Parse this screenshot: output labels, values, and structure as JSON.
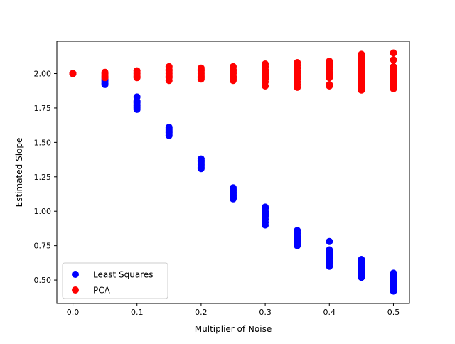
{
  "chart_data": {
    "type": "scatter",
    "title": "",
    "xlabel": "Multiplier of Noise",
    "ylabel": "Estimated Slope",
    "xlim": [
      -0.025,
      0.525
    ],
    "ylim": [
      0.33,
      2.235
    ],
    "xticks": [
      0.0,
      0.1,
      0.2,
      0.3,
      0.4,
      0.5
    ],
    "xtick_labels": [
      "0.0",
      "0.1",
      "0.2",
      "0.3",
      "0.4",
      "0.5"
    ],
    "yticks": [
      0.5,
      0.75,
      1.0,
      1.25,
      1.5,
      1.75,
      2.0
    ],
    "ytick_labels": [
      "0.50",
      "0.75",
      "1.00",
      "1.25",
      "1.50",
      "1.75",
      "2.00"
    ],
    "grid": false,
    "legend_position": "lower left",
    "series": [
      {
        "name": "Least Squares",
        "color": "#0000ff",
        "points": [
          [
            0.0,
            2.0
          ],
          [
            0.0,
            2.0
          ],
          [
            0.0,
            2.0
          ],
          [
            0.05,
            1.92
          ],
          [
            0.05,
            1.93
          ],
          [
            0.05,
            1.94
          ],
          [
            0.05,
            1.95
          ],
          [
            0.05,
            1.96
          ],
          [
            0.1,
            1.74
          ],
          [
            0.1,
            1.75
          ],
          [
            0.1,
            1.76
          ],
          [
            0.1,
            1.77
          ],
          [
            0.1,
            1.78
          ],
          [
            0.1,
            1.79
          ],
          [
            0.1,
            1.8
          ],
          [
            0.1,
            1.83
          ],
          [
            0.15,
            1.55
          ],
          [
            0.15,
            1.56
          ],
          [
            0.15,
            1.57
          ],
          [
            0.15,
            1.58
          ],
          [
            0.15,
            1.59
          ],
          [
            0.15,
            1.6
          ],
          [
            0.15,
            1.61
          ],
          [
            0.2,
            1.31
          ],
          [
            0.2,
            1.32
          ],
          [
            0.2,
            1.33
          ],
          [
            0.2,
            1.34
          ],
          [
            0.2,
            1.35
          ],
          [
            0.2,
            1.36
          ],
          [
            0.2,
            1.37
          ],
          [
            0.2,
            1.38
          ],
          [
            0.25,
            1.09
          ],
          [
            0.25,
            1.1
          ],
          [
            0.25,
            1.11
          ],
          [
            0.25,
            1.12
          ],
          [
            0.25,
            1.13
          ],
          [
            0.25,
            1.14
          ],
          [
            0.25,
            1.15
          ],
          [
            0.25,
            1.16
          ],
          [
            0.25,
            1.17
          ],
          [
            0.3,
            0.9
          ],
          [
            0.3,
            0.92
          ],
          [
            0.3,
            0.94
          ],
          [
            0.3,
            0.96
          ],
          [
            0.3,
            0.97
          ],
          [
            0.3,
            0.98
          ],
          [
            0.3,
            0.99
          ],
          [
            0.3,
            1.0
          ],
          [
            0.3,
            1.02
          ],
          [
            0.3,
            1.03
          ],
          [
            0.35,
            0.75
          ],
          [
            0.35,
            0.76
          ],
          [
            0.35,
            0.77
          ],
          [
            0.35,
            0.78
          ],
          [
            0.35,
            0.79
          ],
          [
            0.35,
            0.8
          ],
          [
            0.35,
            0.81
          ],
          [
            0.35,
            0.82
          ],
          [
            0.35,
            0.84
          ],
          [
            0.35,
            0.86
          ],
          [
            0.4,
            0.6
          ],
          [
            0.4,
            0.62
          ],
          [
            0.4,
            0.64
          ],
          [
            0.4,
            0.66
          ],
          [
            0.4,
            0.68
          ],
          [
            0.4,
            0.7
          ],
          [
            0.4,
            0.71
          ],
          [
            0.4,
            0.72
          ],
          [
            0.4,
            0.78
          ],
          [
            0.45,
            0.52
          ],
          [
            0.45,
            0.54
          ],
          [
            0.45,
            0.56
          ],
          [
            0.45,
            0.58
          ],
          [
            0.45,
            0.6
          ],
          [
            0.45,
            0.62
          ],
          [
            0.45,
            0.63
          ],
          [
            0.45,
            0.65
          ],
          [
            0.5,
            0.42
          ],
          [
            0.5,
            0.44
          ],
          [
            0.5,
            0.46
          ],
          [
            0.5,
            0.48
          ],
          [
            0.5,
            0.5
          ],
          [
            0.5,
            0.52
          ],
          [
            0.5,
            0.54
          ],
          [
            0.5,
            0.55
          ]
        ]
      },
      {
        "name": "PCA",
        "color": "#ff0000",
        "points": [
          [
            0.0,
            2.0
          ],
          [
            0.0,
            2.0
          ],
          [
            0.0,
            2.0
          ],
          [
            0.05,
            1.97
          ],
          [
            0.05,
            1.98
          ],
          [
            0.05,
            1.99
          ],
          [
            0.05,
            2.0
          ],
          [
            0.05,
            2.01
          ],
          [
            0.1,
            1.97
          ],
          [
            0.1,
            1.98
          ],
          [
            0.1,
            1.99
          ],
          [
            0.1,
            2.0
          ],
          [
            0.1,
            2.01
          ],
          [
            0.1,
            2.02
          ],
          [
            0.15,
            1.95
          ],
          [
            0.15,
            1.97
          ],
          [
            0.15,
            1.98
          ],
          [
            0.15,
            1.99
          ],
          [
            0.15,
            2.0
          ],
          [
            0.15,
            2.01
          ],
          [
            0.15,
            2.02
          ],
          [
            0.15,
            2.03
          ],
          [
            0.15,
            2.05
          ],
          [
            0.2,
            1.96
          ],
          [
            0.2,
            1.97
          ],
          [
            0.2,
            1.98
          ],
          [
            0.2,
            1.99
          ],
          [
            0.2,
            2.0
          ],
          [
            0.2,
            2.01
          ],
          [
            0.2,
            2.02
          ],
          [
            0.2,
            2.03
          ],
          [
            0.2,
            2.04
          ],
          [
            0.25,
            1.95
          ],
          [
            0.25,
            1.96
          ],
          [
            0.25,
            1.97
          ],
          [
            0.25,
            1.98
          ],
          [
            0.25,
            2.0
          ],
          [
            0.25,
            2.01
          ],
          [
            0.25,
            2.02
          ],
          [
            0.25,
            2.03
          ],
          [
            0.25,
            2.05
          ],
          [
            0.3,
            1.91
          ],
          [
            0.3,
            1.94
          ],
          [
            0.3,
            1.96
          ],
          [
            0.3,
            1.97
          ],
          [
            0.3,
            1.98
          ],
          [
            0.3,
            1.99
          ],
          [
            0.3,
            2.0
          ],
          [
            0.3,
            2.01
          ],
          [
            0.3,
            2.02
          ],
          [
            0.3,
            2.03
          ],
          [
            0.3,
            2.05
          ],
          [
            0.3,
            2.07
          ],
          [
            0.35,
            1.9
          ],
          [
            0.35,
            1.92
          ],
          [
            0.35,
            1.94
          ],
          [
            0.35,
            1.96
          ],
          [
            0.35,
            1.97
          ],
          [
            0.35,
            1.98
          ],
          [
            0.35,
            2.0
          ],
          [
            0.35,
            2.01
          ],
          [
            0.35,
            2.02
          ],
          [
            0.35,
            2.04
          ],
          [
            0.35,
            2.06
          ],
          [
            0.35,
            2.08
          ],
          [
            0.4,
            1.91
          ],
          [
            0.4,
            1.92
          ],
          [
            0.4,
            1.97
          ],
          [
            0.4,
            1.98
          ],
          [
            0.4,
            1.99
          ],
          [
            0.4,
            2.0
          ],
          [
            0.4,
            2.01
          ],
          [
            0.4,
            2.03
          ],
          [
            0.4,
            2.05
          ],
          [
            0.4,
            2.07
          ],
          [
            0.4,
            2.09
          ],
          [
            0.45,
            1.88
          ],
          [
            0.45,
            1.9
          ],
          [
            0.45,
            1.92
          ],
          [
            0.45,
            1.94
          ],
          [
            0.45,
            1.96
          ],
          [
            0.45,
            1.98
          ],
          [
            0.45,
            2.0
          ],
          [
            0.45,
            2.02
          ],
          [
            0.45,
            2.04
          ],
          [
            0.45,
            2.06
          ],
          [
            0.45,
            2.08
          ],
          [
            0.45,
            2.1
          ],
          [
            0.45,
            2.12
          ],
          [
            0.45,
            2.14
          ],
          [
            0.5,
            1.89
          ],
          [
            0.5,
            1.91
          ],
          [
            0.5,
            1.93
          ],
          [
            0.5,
            1.95
          ],
          [
            0.5,
            1.97
          ],
          [
            0.5,
            1.99
          ],
          [
            0.5,
            2.01
          ],
          [
            0.5,
            2.03
          ],
          [
            0.5,
            2.05
          ],
          [
            0.5,
            2.1
          ],
          [
            0.5,
            2.15
          ]
        ]
      }
    ]
  }
}
